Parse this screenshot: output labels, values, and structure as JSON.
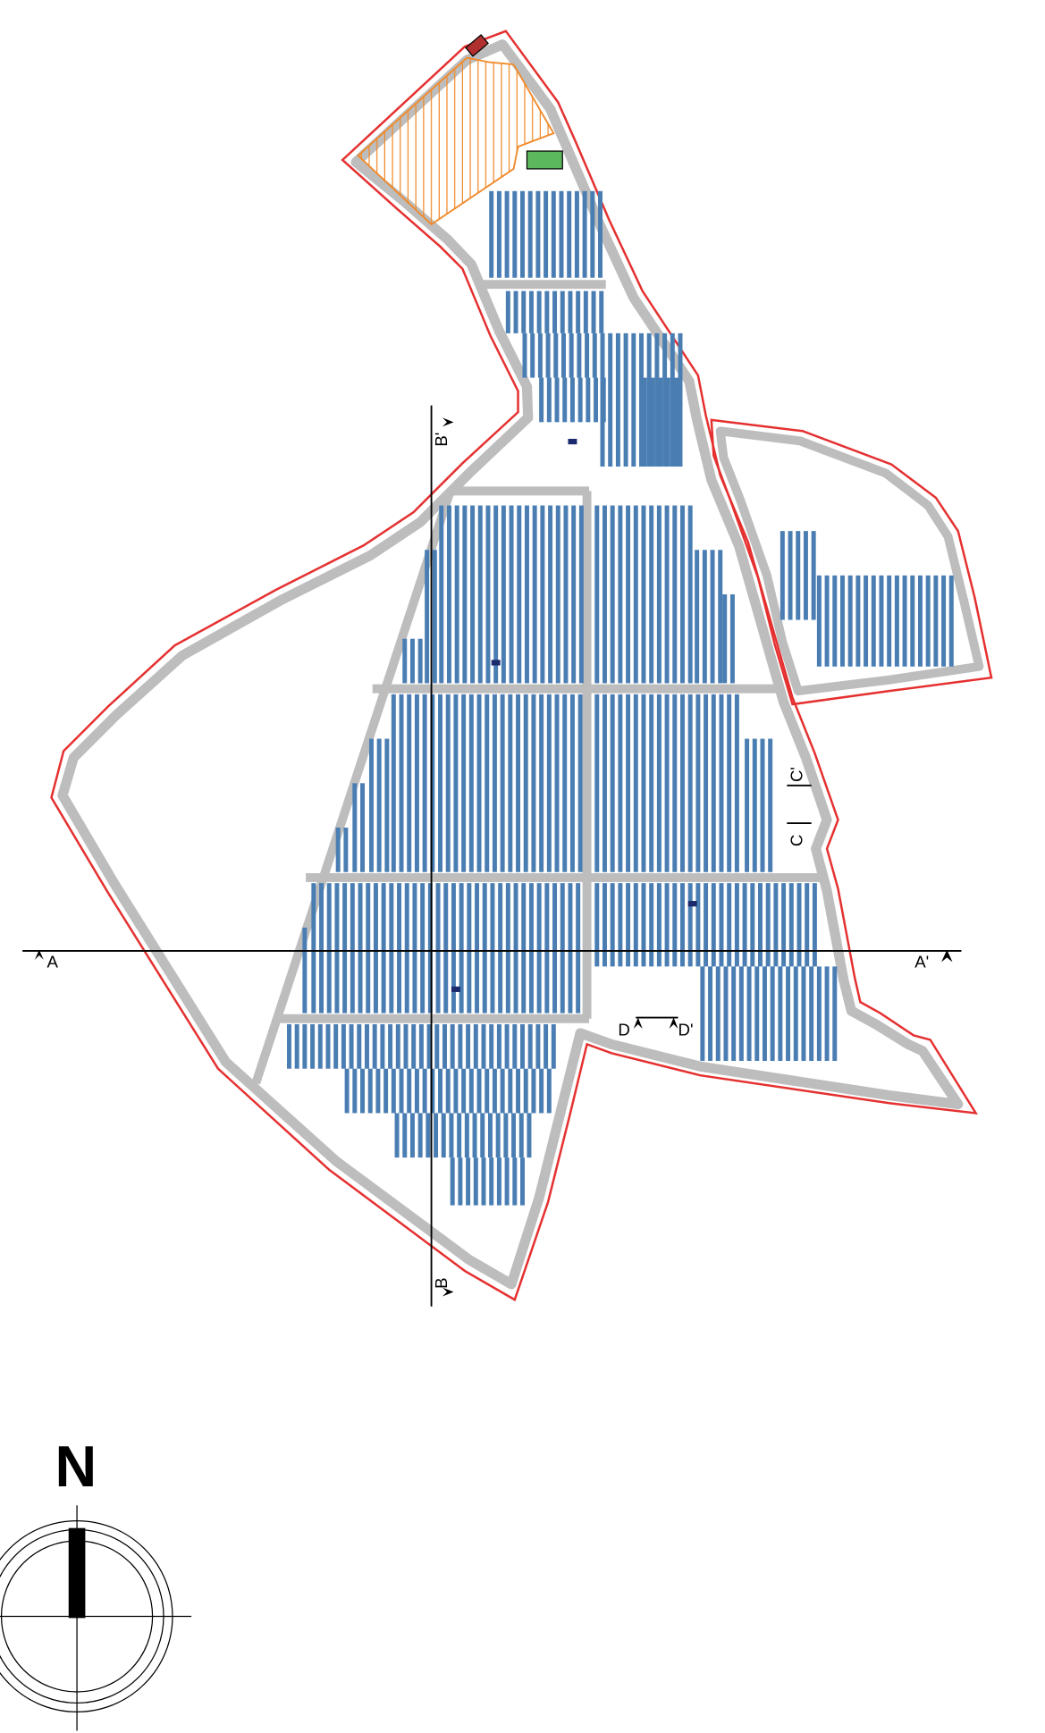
{
  "sections": {
    "a": {
      "start": "A",
      "end": "A'"
    },
    "b": {
      "start": "B",
      "end": "B'"
    },
    "c": {
      "start": "C",
      "end": "C'"
    },
    "d": {
      "start": "D",
      "end": "D'"
    }
  },
  "north": "N"
}
